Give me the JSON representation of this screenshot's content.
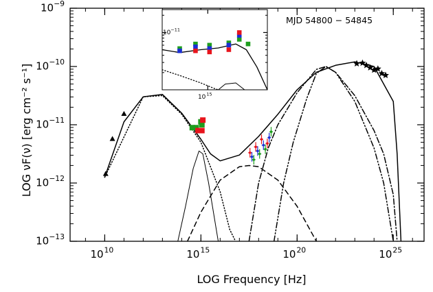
{
  "chart_data": {
    "type": "scatter",
    "title": "",
    "annotation": "MJD 54800 − 54845",
    "xlabel": "LOG Frequency [Hz]",
    "ylabel": "LOG νF(ν) [erg cm⁻² s⁻¹]",
    "x_scale": "log",
    "y_scale": "log",
    "xlim_log10": [
      8.2,
      26.6
    ],
    "ylim_log10": [
      -13,
      -9
    ],
    "x_ticks": [
      {
        "log": 10,
        "mantissa": "10",
        "exp": "10"
      },
      {
        "log": 15,
        "mantissa": "10",
        "exp": "15"
      },
      {
        "log": 20,
        "mantissa": "10",
        "exp": "20"
      },
      {
        "log": 25,
        "mantissa": "10",
        "exp": "25"
      }
    ],
    "y_ticks": [
      {
        "log": -13,
        "mantissa": "10",
        "exp": "−13"
      },
      {
        "log": -12,
        "mantissa": "10",
        "exp": "−12"
      },
      {
        "log": -11,
        "mantissa": "10",
        "exp": "−11"
      },
      {
        "log": -10,
        "mantissa": "10",
        "exp": "−10"
      },
      {
        "log": -9,
        "mantissa": "10",
        "exp": "−9"
      }
    ],
    "grid": false,
    "colors": {
      "red": "#e8141c",
      "green": "#1e9e1e",
      "blue": "#1c2fd6",
      "black": "#000000"
    },
    "series": [
      {
        "marker": "triangle",
        "color": "black",
        "points": [
          [
            10.05,
            -11.84
          ],
          [
            10.4,
            -11.24
          ],
          [
            11.0,
            -10.81
          ]
        ]
      },
      {
        "marker": "square",
        "color": "green",
        "points": [
          [
            14.55,
            -11.05
          ],
          [
            14.75,
            -11.05
          ],
          [
            15.0,
            -10.95
          ],
          [
            15.05,
            -11.0
          ]
        ]
      },
      {
        "marker": "square",
        "color": "red",
        "points": [
          [
            14.85,
            -11.1
          ],
          [
            15.05,
            -11.1
          ],
          [
            15.1,
            -10.92
          ]
        ]
      },
      {
        "marker": "errorbar",
        "color": "red",
        "points": [
          [
            17.55,
            -11.48
          ],
          [
            17.85,
            -11.38
          ],
          [
            18.15,
            -11.25
          ],
          [
            18.45,
            -11.32
          ]
        ]
      },
      {
        "marker": "errorbar",
        "color": "blue",
        "points": [
          [
            17.65,
            -11.55
          ],
          [
            17.95,
            -11.45
          ],
          [
            18.25,
            -11.35
          ],
          [
            18.55,
            -11.22
          ]
        ]
      },
      {
        "marker": "errorbar",
        "color": "green",
        "points": [
          [
            17.75,
            -11.6
          ],
          [
            18.05,
            -11.5
          ],
          [
            18.35,
            -11.42
          ],
          [
            18.65,
            -11.12
          ]
        ]
      },
      {
        "marker": "star",
        "color": "black",
        "points": [
          [
            23.1,
            -9.95
          ],
          [
            23.4,
            -9.94
          ],
          [
            23.6,
            -9.98
          ],
          [
            23.8,
            -10.02
          ],
          [
            24.0,
            -10.06
          ],
          [
            24.2,
            -10.04
          ],
          [
            24.4,
            -10.12
          ],
          [
            24.6,
            -10.15
          ]
        ]
      }
    ],
    "model_curves": [
      {
        "style": "solid",
        "label": "",
        "points": [
          [
            10,
            -11.9
          ],
          [
            11,
            -10.95
          ],
          [
            12,
            -10.52
          ],
          [
            13,
            -10.48
          ],
          [
            14,
            -10.8
          ],
          [
            15,
            -11.25
          ],
          [
            15.5,
            -11.5
          ],
          [
            16,
            -11.62
          ],
          [
            17,
            -11.52
          ],
          [
            18,
            -11.2
          ],
          [
            19,
            -10.82
          ],
          [
            20,
            -10.4
          ],
          [
            21,
            -10.1
          ],
          [
            22,
            -9.98
          ],
          [
            23,
            -9.92
          ],
          [
            24,
            -10.0
          ],
          [
            25,
            -10.6
          ],
          [
            25.2,
            -11.5
          ],
          [
            25.4,
            -13
          ]
        ]
      },
      {
        "style": "dotted",
        "label": "",
        "points": [
          [
            10,
            -11.9
          ],
          [
            12,
            -10.52
          ],
          [
            13,
            -10.5
          ],
          [
            14,
            -10.82
          ],
          [
            15,
            -11.3
          ],
          [
            16,
            -12.15
          ],
          [
            16.5,
            -12.8
          ],
          [
            16.8,
            -13
          ]
        ]
      },
      {
        "style": "dashed",
        "label": "",
        "points": [
          [
            14.3,
            -13
          ],
          [
            15,
            -12.5
          ],
          [
            16,
            -11.95
          ],
          [
            17,
            -11.72
          ],
          [
            17.5,
            -11.7
          ],
          [
            18,
            -11.72
          ],
          [
            19,
            -11.95
          ],
          [
            20,
            -12.4
          ],
          [
            21,
            -13
          ]
        ]
      },
      {
        "style": "thin-solid",
        "label": "",
        "points": [
          [
            13.8,
            -13
          ],
          [
            14.2,
            -12.4
          ],
          [
            14.6,
            -11.75
          ],
          [
            14.9,
            -11.45
          ],
          [
            15.1,
            -11.5
          ],
          [
            15.4,
            -12
          ],
          [
            15.7,
            -12.6
          ],
          [
            15.9,
            -13
          ]
        ]
      },
      {
        "style": "dash-dot",
        "label": "",
        "points": [
          [
            17.5,
            -13
          ],
          [
            18,
            -12.0
          ],
          [
            18.5,
            -11.4
          ],
          [
            19,
            -11.0
          ],
          [
            20,
            -10.45
          ],
          [
            21,
            -10.05
          ],
          [
            21.5,
            -10.0
          ],
          [
            22,
            -10.1
          ],
          [
            23,
            -10.5
          ],
          [
            24,
            -11.1
          ],
          [
            24.5,
            -11.5
          ],
          [
            25,
            -12.2
          ],
          [
            25.2,
            -13
          ]
        ]
      },
      {
        "style": "dash-dot-dot",
        "label": "",
        "points": [
          [
            18.8,
            -13
          ],
          [
            19.3,
            -12
          ],
          [
            19.8,
            -11.3
          ],
          [
            20.5,
            -10.55
          ],
          [
            21,
            -10.12
          ],
          [
            21.5,
            -10.0
          ],
          [
            22,
            -10.1
          ],
          [
            23,
            -10.6
          ],
          [
            24,
            -11.4
          ],
          [
            24.5,
            -12
          ],
          [
            25,
            -13
          ]
        ]
      }
    ],
    "inset": {
      "xlim_log10": [
        13.7,
        16.7
      ],
      "ylim_log10": [
        -12.0,
        -10.6
      ],
      "x_ticks": [
        {
          "log": 15,
          "mantissa": "10",
          "exp": "15"
        }
      ],
      "y_ticks": [
        {
          "log": -11,
          "mantissa": "10",
          "exp": "−11"
        }
      ],
      "series": [
        {
          "marker": "square",
          "color": "green",
          "points": [
            [
              14.2,
              -11.28
            ],
            [
              14.65,
              -11.2
            ],
            [
              15.05,
              -11.22
            ],
            [
              15.6,
              -11.18
            ],
            [
              15.9,
              -11.12
            ],
            [
              16.15,
              -11.2
            ]
          ]
        },
        {
          "marker": "square",
          "color": "blue",
          "points": [
            [
              14.2,
              -11.32
            ],
            [
              14.65,
              -11.25
            ],
            [
              15.05,
              -11.28
            ],
            [
              15.6,
              -11.22
            ],
            [
              15.9,
              -11.05
            ]
          ]
        },
        {
          "marker": "square",
          "color": "red",
          "points": [
            [
              14.65,
              -11.32
            ],
            [
              15.05,
              -11.34
            ],
            [
              15.6,
              -11.3
            ],
            [
              15.9,
              -11.0
            ]
          ]
        }
      ],
      "model_curves": [
        {
          "style": "solid",
          "points": [
            [
              13.7,
              -11.3
            ],
            [
              14.2,
              -11.35
            ],
            [
              14.8,
              -11.3
            ],
            [
              15.3,
              -11.27
            ],
            [
              15.8,
              -11.2
            ],
            [
              16.1,
              -11.3
            ],
            [
              16.4,
              -11.6
            ],
            [
              16.7,
              -12.0
            ]
          ]
        },
        {
          "style": "dotted",
          "points": [
            [
              13.7,
              -11.65
            ],
            [
              14.2,
              -11.75
            ],
            [
              14.8,
              -11.88
            ],
            [
              15.2,
              -11.98
            ],
            [
              15.3,
              -12.0
            ]
          ]
        },
        {
          "style": "thin-solid",
          "points": [
            [
              15.3,
              -12.0
            ],
            [
              15.5,
              -11.9
            ],
            [
              15.8,
              -11.88
            ],
            [
              16.05,
              -12.0
            ]
          ]
        }
      ]
    }
  }
}
